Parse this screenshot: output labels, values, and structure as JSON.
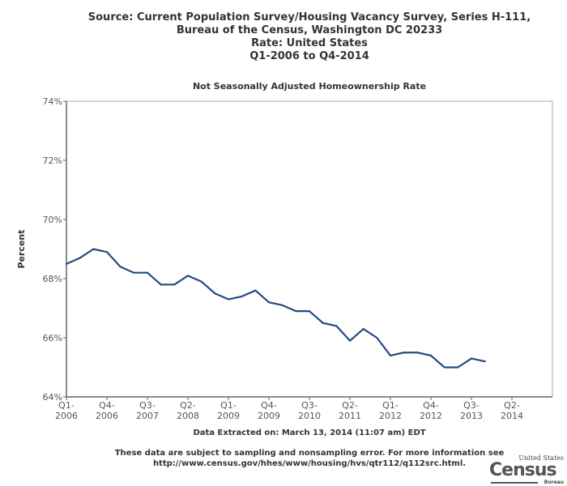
{
  "header": {
    "lines": [
      "Source: Current Population Survey/Housing Vacancy Survey, Series H-111,",
      "Bureau of the Census, Washington DC 20233",
      "Rate: United States",
      "Q1-2006 to Q4-2014"
    ]
  },
  "chart_data": {
    "type": "line",
    "title": "Not Seasonally Adjusted Homeownership Rate",
    "ylabel": "Percent",
    "xlabel": "",
    "ylim": [
      64,
      74
    ],
    "yticks": [
      "64%",
      "66%",
      "68%",
      "70%",
      "72%",
      "74%"
    ],
    "xticks": [
      [
        "Q1-",
        "2006"
      ],
      [
        "Q4-",
        "2006"
      ],
      [
        "Q3-",
        "2007"
      ],
      [
        "Q2-",
        "2008"
      ],
      [
        "Q1-",
        "2009"
      ],
      [
        "Q4-",
        "2009"
      ],
      [
        "Q3-",
        "2010"
      ],
      [
        "Q2-",
        "2011"
      ],
      [
        "Q1-",
        "2012"
      ],
      [
        "Q4-",
        "2012"
      ],
      [
        "Q3-",
        "2013"
      ],
      [
        "Q2-",
        "2014"
      ]
    ],
    "x_range": [
      "Q1-2006",
      "Q4-2014"
    ],
    "grid": false,
    "color": "#264a7f",
    "x": [
      "Q1-2006",
      "Q2-2006",
      "Q3-2006",
      "Q4-2006",
      "Q1-2007",
      "Q2-2007",
      "Q3-2007",
      "Q4-2007",
      "Q1-2008",
      "Q2-2008",
      "Q3-2008",
      "Q4-2008",
      "Q1-2009",
      "Q2-2009",
      "Q3-2009",
      "Q4-2009",
      "Q1-2010",
      "Q2-2010",
      "Q3-2010",
      "Q4-2010",
      "Q1-2011",
      "Q2-2011",
      "Q3-2011",
      "Q4-2011",
      "Q1-2012",
      "Q2-2012",
      "Q3-2012",
      "Q4-2012",
      "Q1-2013",
      "Q2-2013",
      "Q3-2013",
      "Q4-2013"
    ],
    "values": [
      68.5,
      68.7,
      69.0,
      68.9,
      68.4,
      68.2,
      68.2,
      67.8,
      67.8,
      68.1,
      67.9,
      67.5,
      67.3,
      67.4,
      67.6,
      67.2,
      67.1,
      66.9,
      66.9,
      66.5,
      66.4,
      65.9,
      66.3,
      66.0,
      65.4,
      65.5,
      65.5,
      65.4,
      65.0,
      65.0,
      65.3,
      65.2
    ]
  },
  "footer": {
    "extracted": "Data Extracted on: March 13, 2014 (11:07 am) EDT",
    "note1": "These data are subject to sampling and nonsampling error. For more information see",
    "note2": "http://www.census.gov/hhes/www/housing/hvs/qtr112/q112src.html."
  },
  "logo": {
    "top": "United States",
    "main": "Census",
    "bottom": "Bureau"
  }
}
